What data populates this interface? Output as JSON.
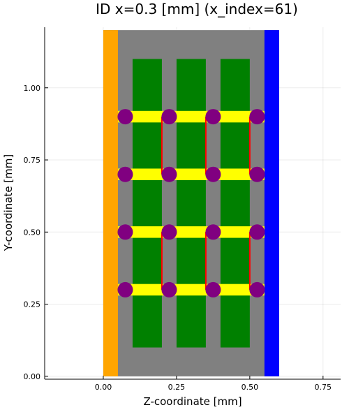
{
  "chart_data": {
    "type": "scatter",
    "title": "ID x=0.3 [mm] (x_index=61)",
    "xlabel": "Z-coordinate [mm]",
    "ylabel": "Y-coordinate [mm]",
    "xlim": [
      -0.2,
      0.81
    ],
    "ylim": [
      -0.01,
      1.21
    ],
    "x_ticks": [
      0.0,
      0.25,
      0.5,
      0.75
    ],
    "x_tick_labels": [
      "0.00",
      "0.25",
      "0.50",
      "0.75"
    ],
    "y_ticks": [
      0.0,
      0.25,
      0.5,
      0.75,
      1.0
    ],
    "y_tick_labels": [
      "0.00",
      "0.25",
      "0.50",
      "0.75",
      "1.00"
    ],
    "grid": true,
    "legend": "none",
    "colors": {
      "background_region": "#808080",
      "left_electrode": "#FFA500",
      "right_electrode": "#0000FF",
      "pillar": "#008000",
      "bridge": "#FFFF00",
      "node": "#800080",
      "link": "#FF0000"
    },
    "background_region": {
      "z": [
        0.0,
        0.6
      ],
      "y": [
        0.0,
        1.2
      ]
    },
    "left_electrode": {
      "z": [
        0.0,
        0.05
      ],
      "y": [
        0.0,
        1.2
      ]
    },
    "right_electrode": {
      "z": [
        0.55,
        0.6
      ],
      "y": [
        0.0,
        1.2
      ]
    },
    "pillars": [
      {
        "z": [
          0.1,
          0.2
        ],
        "y": [
          0.1,
          1.1
        ]
      },
      {
        "z": [
          0.25,
          0.35
        ],
        "y": [
          0.1,
          1.1
        ]
      },
      {
        "z": [
          0.4,
          0.5
        ],
        "y": [
          0.1,
          1.1
        ]
      }
    ],
    "bridges": [
      {
        "z": [
          0.05,
          0.55
        ],
        "y_center": 0.3,
        "height": 0.04
      },
      {
        "z": [
          0.05,
          0.55
        ],
        "y_center": 0.5,
        "height": 0.04
      },
      {
        "z": [
          0.05,
          0.55
        ],
        "y_center": 0.7,
        "height": 0.04
      },
      {
        "z": [
          0.05,
          0.55
        ],
        "y_center": 0.9,
        "height": 0.04
      }
    ],
    "nodes": {
      "z": [
        0.075,
        0.225,
        0.375,
        0.525
      ],
      "y": [
        0.3,
        0.5,
        0.7,
        0.9
      ]
    },
    "links": [
      {
        "z": 0.2,
        "y": [
          0.3,
          0.5
        ]
      },
      {
        "z": 0.35,
        "y": [
          0.3,
          0.5
        ]
      },
      {
        "z": 0.5,
        "y": [
          0.3,
          0.5
        ]
      },
      {
        "z": 0.2,
        "y": [
          0.7,
          0.9
        ]
      },
      {
        "z": 0.35,
        "y": [
          0.7,
          0.9
        ]
      },
      {
        "z": 0.5,
        "y": [
          0.7,
          0.9
        ]
      }
    ]
  }
}
